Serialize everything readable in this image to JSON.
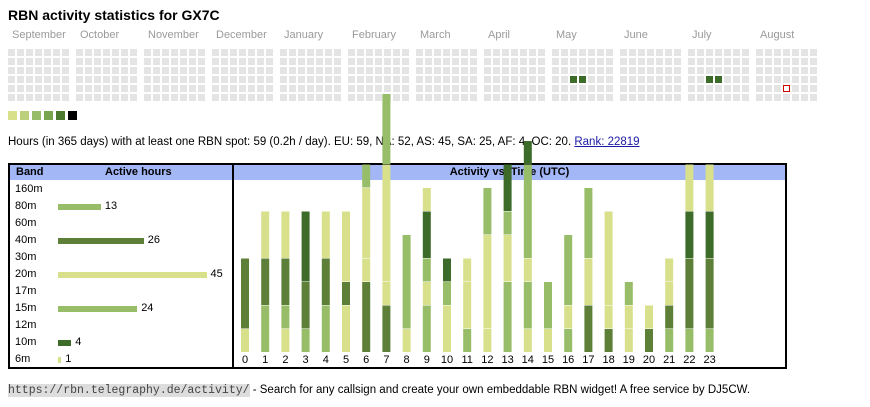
{
  "title": "RBN activity statistics for GX7C",
  "months": [
    "September",
    "October",
    "November",
    "December",
    "January",
    "February",
    "March",
    "April",
    "May",
    "June",
    "July",
    "August"
  ],
  "heatmap": {
    "empty_color": "#e4e4e4",
    "active_cells": [
      {
        "month": "May",
        "week": 2,
        "day": 3,
        "color": "#3d6b2a"
      },
      {
        "month": "May",
        "week": 3,
        "day": 3,
        "color": "#3d6b2a"
      },
      {
        "month": "July",
        "week": 2,
        "day": 3,
        "color": "#3d6b2a"
      },
      {
        "month": "July",
        "week": 3,
        "day": 3,
        "color": "#3d6b2a"
      }
    ],
    "today_marker": {
      "month": "August",
      "week": 3,
      "day": 4,
      "color": "#d00000"
    }
  },
  "legend_colors": [
    "#d9e08c",
    "#bccf7a",
    "#98bd69",
    "#7aa54f",
    "#4b7a2e",
    "#000000"
  ],
  "summary": {
    "text": "Hours (in 365 days) with at least one RBN spot: 59 (0.2h / day). EU: 59, NA: 52, AS: 45, SA: 25, AF: 4, OC: 20.",
    "rank_label": "Rank: 22819"
  },
  "band_table": {
    "band_header": "Band",
    "hours_header": "Active hours"
  },
  "activity_header": "Activity vs. Time (UTC)",
  "chart_data": [
    {
      "type": "bar",
      "title": "Active hours",
      "categories": [
        "160m",
        "80m",
        "60m",
        "40m",
        "30m",
        "20m",
        "17m",
        "15m",
        "12m",
        "10m",
        "6m"
      ],
      "values": [
        0,
        13,
        0,
        26,
        0,
        45,
        0,
        24,
        0,
        4,
        1
      ],
      "colors": [
        "#d9e08c",
        "#98bd69",
        "#d9e08c",
        "#5e7f38",
        "#d9e08c",
        "#d9e08c",
        "#d9e08c",
        "#98bd69",
        "#d9e08c",
        "#3d6b2a",
        "#d9e08c"
      ]
    },
    {
      "type": "bar",
      "title": "Activity vs. Time (UTC)",
      "categories": [
        "0",
        "1",
        "2",
        "3",
        "4",
        "5",
        "6",
        "7",
        "8",
        "9",
        "10",
        "11",
        "12",
        "13",
        "14",
        "15",
        "16",
        "17",
        "18",
        "19",
        "20",
        "21",
        "22",
        "23"
      ],
      "segment_colors": [
        "#d9e08c",
        "#98bd69",
        "#5e7f38",
        "#3d6b2a"
      ],
      "stacks": [
        [
          1,
          3
        ],
        [
          2,
          2,
          2
        ],
        [
          1,
          1,
          2,
          2
        ],
        [
          1,
          2,
          3
        ],
        [
          2,
          2,
          2
        ],
        [
          2,
          1,
          3
        ],
        [
          3,
          1,
          3,
          1
        ],
        [
          2,
          1,
          5,
          3
        ],
        [
          1,
          4
        ],
        [
          2,
          1,
          1,
          2,
          1
        ],
        [
          2,
          1,
          1
        ],
        [
          1,
          2,
          1
        ],
        [
          1,
          4,
          2
        ],
        [
          3,
          2,
          1,
          2
        ],
        [
          1,
          2,
          1,
          4,
          1
        ],
        [
          1,
          2
        ],
        [
          1,
          1,
          3
        ],
        [
          2,
          2,
          3
        ],
        [
          1,
          1,
          4
        ],
        [
          1,
          1,
          1
        ],
        [
          1,
          1
        ],
        [
          1,
          1,
          1,
          1
        ],
        [
          1,
          3,
          2,
          2
        ],
        [
          1,
          3,
          2,
          2
        ]
      ],
      "stack_colors": [
        [
          "#d9e08c",
          "#5e7f38"
        ],
        [
          "#98bd69",
          "#5e7f38",
          "#d9e08c"
        ],
        [
          "#d9e08c",
          "#98bd69",
          "#5e7f38",
          "#d9e08c"
        ],
        [
          "#98bd69",
          "#5e7f38",
          "#3d6b2a"
        ],
        [
          "#98bd69",
          "#5e7f38",
          "#d9e08c"
        ],
        [
          "#d9e08c",
          "#5e7f38",
          "#d9e08c"
        ],
        [
          "#5e7f38",
          "#d9e08c",
          "#d9e08c",
          "#98bd69"
        ],
        [
          "#5e7f38",
          "#d9e08c",
          "#d9e08c",
          "#98bd69"
        ],
        [
          "#d9e08c",
          "#98bd69"
        ],
        [
          "#98bd69",
          "#d9e08c",
          "#98bd69",
          "#3d6b2a",
          "#d9e08c"
        ],
        [
          "#d9e08c",
          "#98bd69",
          "#3d6b2a"
        ],
        [
          "#98bd69",
          "#d9e08c",
          "#d9e08c"
        ],
        [
          "#d9e08c",
          "#d9e08c",
          "#98bd69"
        ],
        [
          "#98bd69",
          "#d9e08c",
          "#98bd69",
          "#3d6b2a"
        ],
        [
          "#d9e08c",
          "#98bd69",
          "#d9e08c",
          "#98bd69",
          "#3d6b2a"
        ],
        [
          "#d9e08c",
          "#98bd69"
        ],
        [
          "#98bd69",
          "#d9e08c",
          "#98bd69"
        ],
        [
          "#5e7f38",
          "#d9e08c",
          "#98bd69"
        ],
        [
          "#5e7f38",
          "#d9e08c",
          "#d9e08c"
        ],
        [
          "#d9e08c",
          "#d9e08c",
          "#98bd69"
        ],
        [
          "#5e7f38",
          "#d9e08c"
        ],
        [
          "#98bd69",
          "#5e7f38",
          "#d9e08c",
          "#d9e08c"
        ],
        [
          "#98bd69",
          "#5e7f38",
          "#3d6b2a",
          "#d9e08c"
        ],
        [
          "#98bd69",
          "#5e7f38",
          "#3d6b2a",
          "#d9e08c"
        ]
      ]
    }
  ],
  "footer": {
    "url_text": "https://rbn.telegraphy.de/activity/",
    "tail_text": " - Search for any callsign and create your own embeddable RBN widget! A free service by DJ5CW."
  }
}
